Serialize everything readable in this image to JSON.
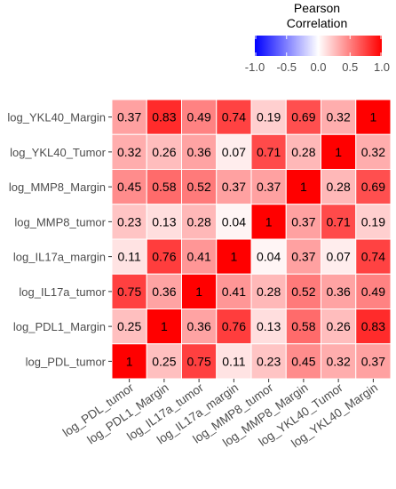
{
  "chart_data": {
    "type": "heatmap",
    "legend": {
      "title_lines": [
        "Pearson",
        "Correlation"
      ],
      "ticks": [
        "-1.0",
        "-0.5",
        "0.0",
        "0.5",
        "1.0"
      ],
      "tick_values": [
        -1.0,
        -0.5,
        0.0,
        0.5,
        1.0
      ],
      "range": [
        -1,
        1
      ],
      "placement": "top-right"
    },
    "colors": {
      "low": "#0000ff",
      "mid": "#ffffff",
      "high": "#ff0000",
      "text": "#000000",
      "label": "#4d4d4d"
    },
    "x_labels": [
      "log_PDL_tumor",
      "log_PDL1_Margin",
      "log_IL17a_tumor",
      "log_IL17a_margin",
      "log_MMP8_tumor",
      "log_MMP8_Margin",
      "log_YKL40_Tumor",
      "log_YKL40_Margin"
    ],
    "y_labels": [
      "log_YKL40_Margin",
      "log_YKL40_Tumor",
      "log_MMP8_Margin",
      "log_MMP8_tumor",
      "log_IL17a_margin",
      "log_IL17a_tumor",
      "log_PDL1_Margin",
      "log_PDL_tumor"
    ],
    "values": [
      [
        0.37,
        0.83,
        0.49,
        0.74,
        0.19,
        0.69,
        0.32,
        1
      ],
      [
        0.32,
        0.26,
        0.36,
        0.07,
        0.71,
        0.28,
        1,
        0.32
      ],
      [
        0.45,
        0.58,
        0.52,
        0.37,
        0.37,
        1,
        0.28,
        0.69
      ],
      [
        0.23,
        0.13,
        0.28,
        0.04,
        1,
        0.37,
        0.71,
        0.19
      ],
      [
        0.11,
        0.76,
        0.41,
        1,
        0.04,
        0.37,
        0.07,
        0.74
      ],
      [
        0.75,
        0.36,
        1,
        0.41,
        0.28,
        0.52,
        0.36,
        0.49
      ],
      [
        0.25,
        1,
        0.36,
        0.76,
        0.13,
        0.58,
        0.26,
        0.83
      ],
      [
        1,
        0.25,
        0.75,
        0.11,
        0.23,
        0.45,
        0.32,
        0.37
      ]
    ],
    "value_labels": [
      [
        "0.37",
        "0.83",
        "0.49",
        "0.74",
        "0.19",
        "0.69",
        "0.32",
        "1"
      ],
      [
        "0.32",
        "0.26",
        "0.36",
        "0.07",
        "0.71",
        "0.28",
        "1",
        "0.32"
      ],
      [
        "0.45",
        "0.58",
        "0.52",
        "0.37",
        "0.37",
        "1",
        "0.28",
        "0.69"
      ],
      [
        "0.23",
        "0.13",
        "0.28",
        "0.04",
        "1",
        "0.37",
        "0.71",
        "0.19"
      ],
      [
        "0.11",
        "0.76",
        "0.41",
        "1",
        "0.04",
        "0.37",
        "0.07",
        "0.74"
      ],
      [
        "0.75",
        "0.36",
        "1",
        "0.41",
        "0.28",
        "0.52",
        "0.36",
        "0.49"
      ],
      [
        "0.25",
        "1",
        "0.36",
        "0.76",
        "0.13",
        "0.58",
        "0.26",
        "0.83"
      ],
      [
        "1",
        "0.25",
        "0.75",
        "0.11",
        "0.23",
        "0.45",
        "0.32",
        "0.37"
      ]
    ]
  }
}
